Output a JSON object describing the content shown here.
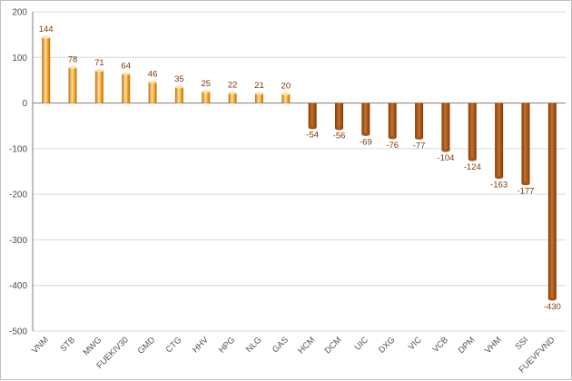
{
  "chart_data": {
    "type": "bar",
    "title": "",
    "xlabel": "",
    "ylabel": "",
    "ylim": [
      -500,
      200
    ],
    "yticks": [
      200,
      100,
      0,
      -100,
      -200,
      -300,
      -400,
      -500
    ],
    "grid": true,
    "categories": [
      "VNM",
      "STB",
      "MWG",
      "FUEKIV30",
      "GMD",
      "CTG",
      "HHV",
      "HPG",
      "NLG",
      "GAS",
      "HCM",
      "DCM",
      "UIC",
      "DXG",
      "VIC",
      "VCB",
      "DPM",
      "VHM",
      "SSI",
      "FUEVFVND"
    ],
    "values": [
      144,
      78,
      71,
      64,
      46,
      35,
      25,
      22,
      21,
      20,
      -54,
      -56,
      -69,
      -76,
      -77,
      -104,
      -124,
      -163,
      -177,
      -430
    ],
    "colors": {
      "positive_light": "#fde3a3",
      "positive_mid": "#f5a623",
      "positive_dark": "#c86a08",
      "negative_light": "#c9702a",
      "negative_dark": "#7e3a06",
      "grid": "#d9d9d9",
      "axis": "#7f7f7f",
      "label": "#7a3a0a"
    }
  }
}
